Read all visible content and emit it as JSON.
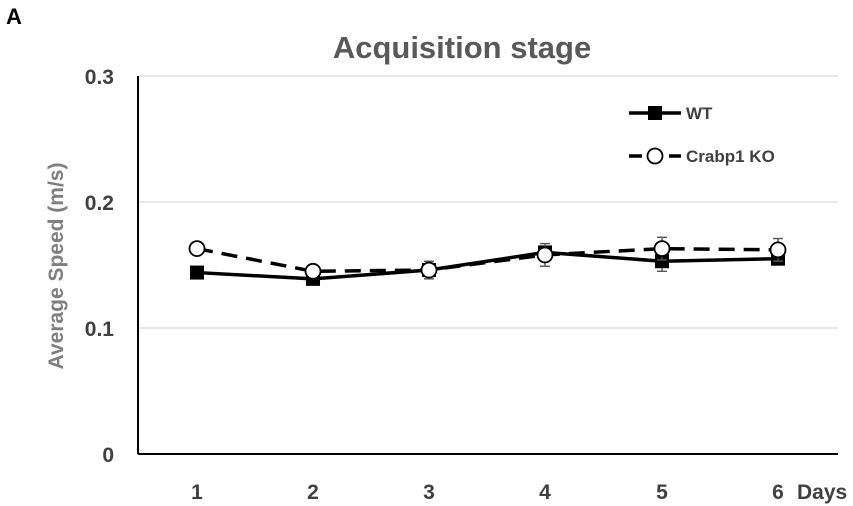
{
  "panel_label": "A",
  "chart_data": {
    "type": "line",
    "title": "Acquisition stage",
    "xlabel": "Days",
    "ylabel": "Average Speed (m/s)",
    "categories": [
      "1",
      "2",
      "3",
      "4",
      "5",
      "6"
    ],
    "ylim": [
      0,
      0.3
    ],
    "yticks": [
      0,
      0.1,
      0.2,
      0.3
    ],
    "ytick_labels": [
      "0",
      "0.1",
      "0.2",
      "0.3"
    ],
    "grid": "horizontal",
    "legend_position": "top-right",
    "series": [
      {
        "name": "WT",
        "values": [
          0.144,
          0.139,
          0.146,
          0.16,
          0.153,
          0.155
        ],
        "errors": [
          0.004,
          0.003,
          0.004,
          0.003,
          0.008,
          0.004
        ],
        "line_style": "solid",
        "marker": "square-filled",
        "color": "#000000"
      },
      {
        "name": "Crabp1 KO",
        "values": [
          0.163,
          0.145,
          0.146,
          0.158,
          0.163,
          0.162
        ],
        "errors": [
          0.004,
          0.003,
          0.007,
          0.009,
          0.009,
          0.009
        ],
        "line_style": "dashed",
        "marker": "circle-open",
        "color": "#000000"
      }
    ]
  }
}
